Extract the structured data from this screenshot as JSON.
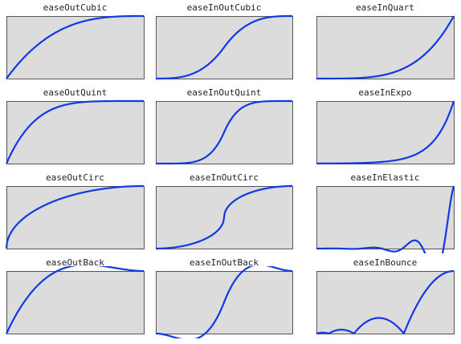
{
  "colors": {
    "curve": "#1238e6",
    "panel_bg": "#dcdcdc",
    "panel_border": "#555555"
  },
  "chart_data": [
    {
      "type": "line",
      "title": "easeOutCubic",
      "function": "easeOutCubic",
      "x": [
        0,
        0.1,
        0.2,
        0.3,
        0.4,
        0.5,
        0.6,
        0.7,
        0.8,
        0.9,
        1
      ],
      "y": [
        0,
        0.271,
        0.488,
        0.657,
        0.784,
        0.875,
        0.936,
        0.973,
        0.992,
        0.999,
        1
      ]
    },
    {
      "type": "line",
      "title": "easeInOutCubic",
      "function": "easeInOutCubic",
      "x": [
        0,
        0.1,
        0.2,
        0.3,
        0.4,
        0.5,
        0.6,
        0.7,
        0.8,
        0.9,
        1
      ],
      "y": [
        0,
        0.004,
        0.032,
        0.108,
        0.256,
        0.5,
        0.744,
        0.892,
        0.968,
        0.996,
        1
      ]
    },
    {
      "type": "line",
      "title": "easeInQuart",
      "function": "easeInQuart",
      "x": [
        0,
        0.1,
        0.2,
        0.3,
        0.4,
        0.5,
        0.6,
        0.7,
        0.8,
        0.9,
        1
      ],
      "y": [
        0,
        0.0001,
        0.0016,
        0.0081,
        0.0256,
        0.0625,
        0.1296,
        0.2401,
        0.4096,
        0.6561,
        1
      ]
    },
    {
      "type": "line",
      "title": "easeOutQuint",
      "function": "easeOutQuint",
      "x": [
        0,
        0.1,
        0.2,
        0.3,
        0.4,
        0.5,
        0.6,
        0.7,
        0.8,
        0.9,
        1
      ],
      "y": [
        0,
        0.41,
        0.672,
        0.832,
        0.922,
        0.969,
        0.99,
        0.998,
        1,
        1,
        1
      ]
    },
    {
      "type": "line",
      "title": "easeInOutQuint",
      "function": "easeInOutQuint",
      "x": [
        0,
        0.1,
        0.2,
        0.3,
        0.4,
        0.5,
        0.6,
        0.7,
        0.8,
        0.9,
        1
      ],
      "y": [
        0,
        0.0002,
        0.005,
        0.039,
        0.164,
        0.5,
        0.836,
        0.961,
        0.995,
        1,
        1
      ]
    },
    {
      "type": "line",
      "title": "easeInExpo",
      "function": "easeInExpo",
      "x": [
        0,
        0.1,
        0.2,
        0.3,
        0.4,
        0.5,
        0.6,
        0.7,
        0.8,
        0.9,
        1
      ],
      "y": [
        0,
        0.002,
        0.004,
        0.008,
        0.016,
        0.031,
        0.063,
        0.125,
        0.25,
        0.5,
        1
      ]
    },
    {
      "type": "line",
      "title": "easeOutCirc",
      "function": "easeOutCirc",
      "x": [
        0,
        0.1,
        0.2,
        0.3,
        0.4,
        0.5,
        0.6,
        0.7,
        0.8,
        0.9,
        1
      ],
      "y": [
        0,
        0.436,
        0.6,
        0.714,
        0.8,
        0.866,
        0.917,
        0.954,
        0.98,
        0.995,
        1
      ]
    },
    {
      "type": "line",
      "title": "easeInOutCirc",
      "function": "easeInOutCirc",
      "x": [
        0,
        0.1,
        0.2,
        0.3,
        0.4,
        0.5,
        0.6,
        0.7,
        0.8,
        0.9,
        1
      ],
      "y": [
        0,
        0.01,
        0.042,
        0.1,
        0.2,
        0.5,
        0.8,
        0.9,
        0.958,
        0.99,
        1
      ]
    },
    {
      "type": "line",
      "title": "easeInElastic",
      "function": "easeInElastic",
      "x": [
        0,
        0.1,
        0.2,
        0.3,
        0.4,
        0.5,
        0.6,
        0.7,
        0.8,
        0.9,
        1
      ],
      "y": [
        0,
        0.002,
        -0.002,
        0,
        0.008,
        -0.016,
        0,
        0.063,
        -0.125,
        0,
        1
      ]
    },
    {
      "type": "line",
      "title": "easeOutBack",
      "function": "easeOutBack",
      "x": [
        0,
        0.1,
        0.2,
        0.3,
        0.4,
        0.5,
        0.6,
        0.7,
        0.8,
        0.9,
        1
      ],
      "y": [
        0,
        0.409,
        0.708,
        0.904,
        1.025,
        1.088,
        1.104,
        1.087,
        1.053,
        1.019,
        1
      ]
    },
    {
      "type": "line",
      "title": "easeInOutBack",
      "function": "easeInOutBack",
      "x": [
        0,
        0.1,
        0.2,
        0.3,
        0.4,
        0.5,
        0.6,
        0.7,
        0.8,
        0.9,
        1
      ],
      "y": [
        0,
        -0.038,
        -0.093,
        -0.048,
        0.209,
        0.5,
        0.791,
        1.048,
        1.093,
        1.038,
        1
      ]
    },
    {
      "type": "line",
      "title": "easeInBounce",
      "function": "easeInBounce",
      "x": [
        0,
        0.1,
        0.2,
        0.3,
        0.4,
        0.5,
        0.6,
        0.7,
        0.8,
        0.9,
        1
      ],
      "y": [
        0,
        0.012,
        0.06,
        0.069,
        0.228,
        0.234,
        0.09,
        0.319,
        0.698,
        0.924,
        1
      ]
    }
  ]
}
